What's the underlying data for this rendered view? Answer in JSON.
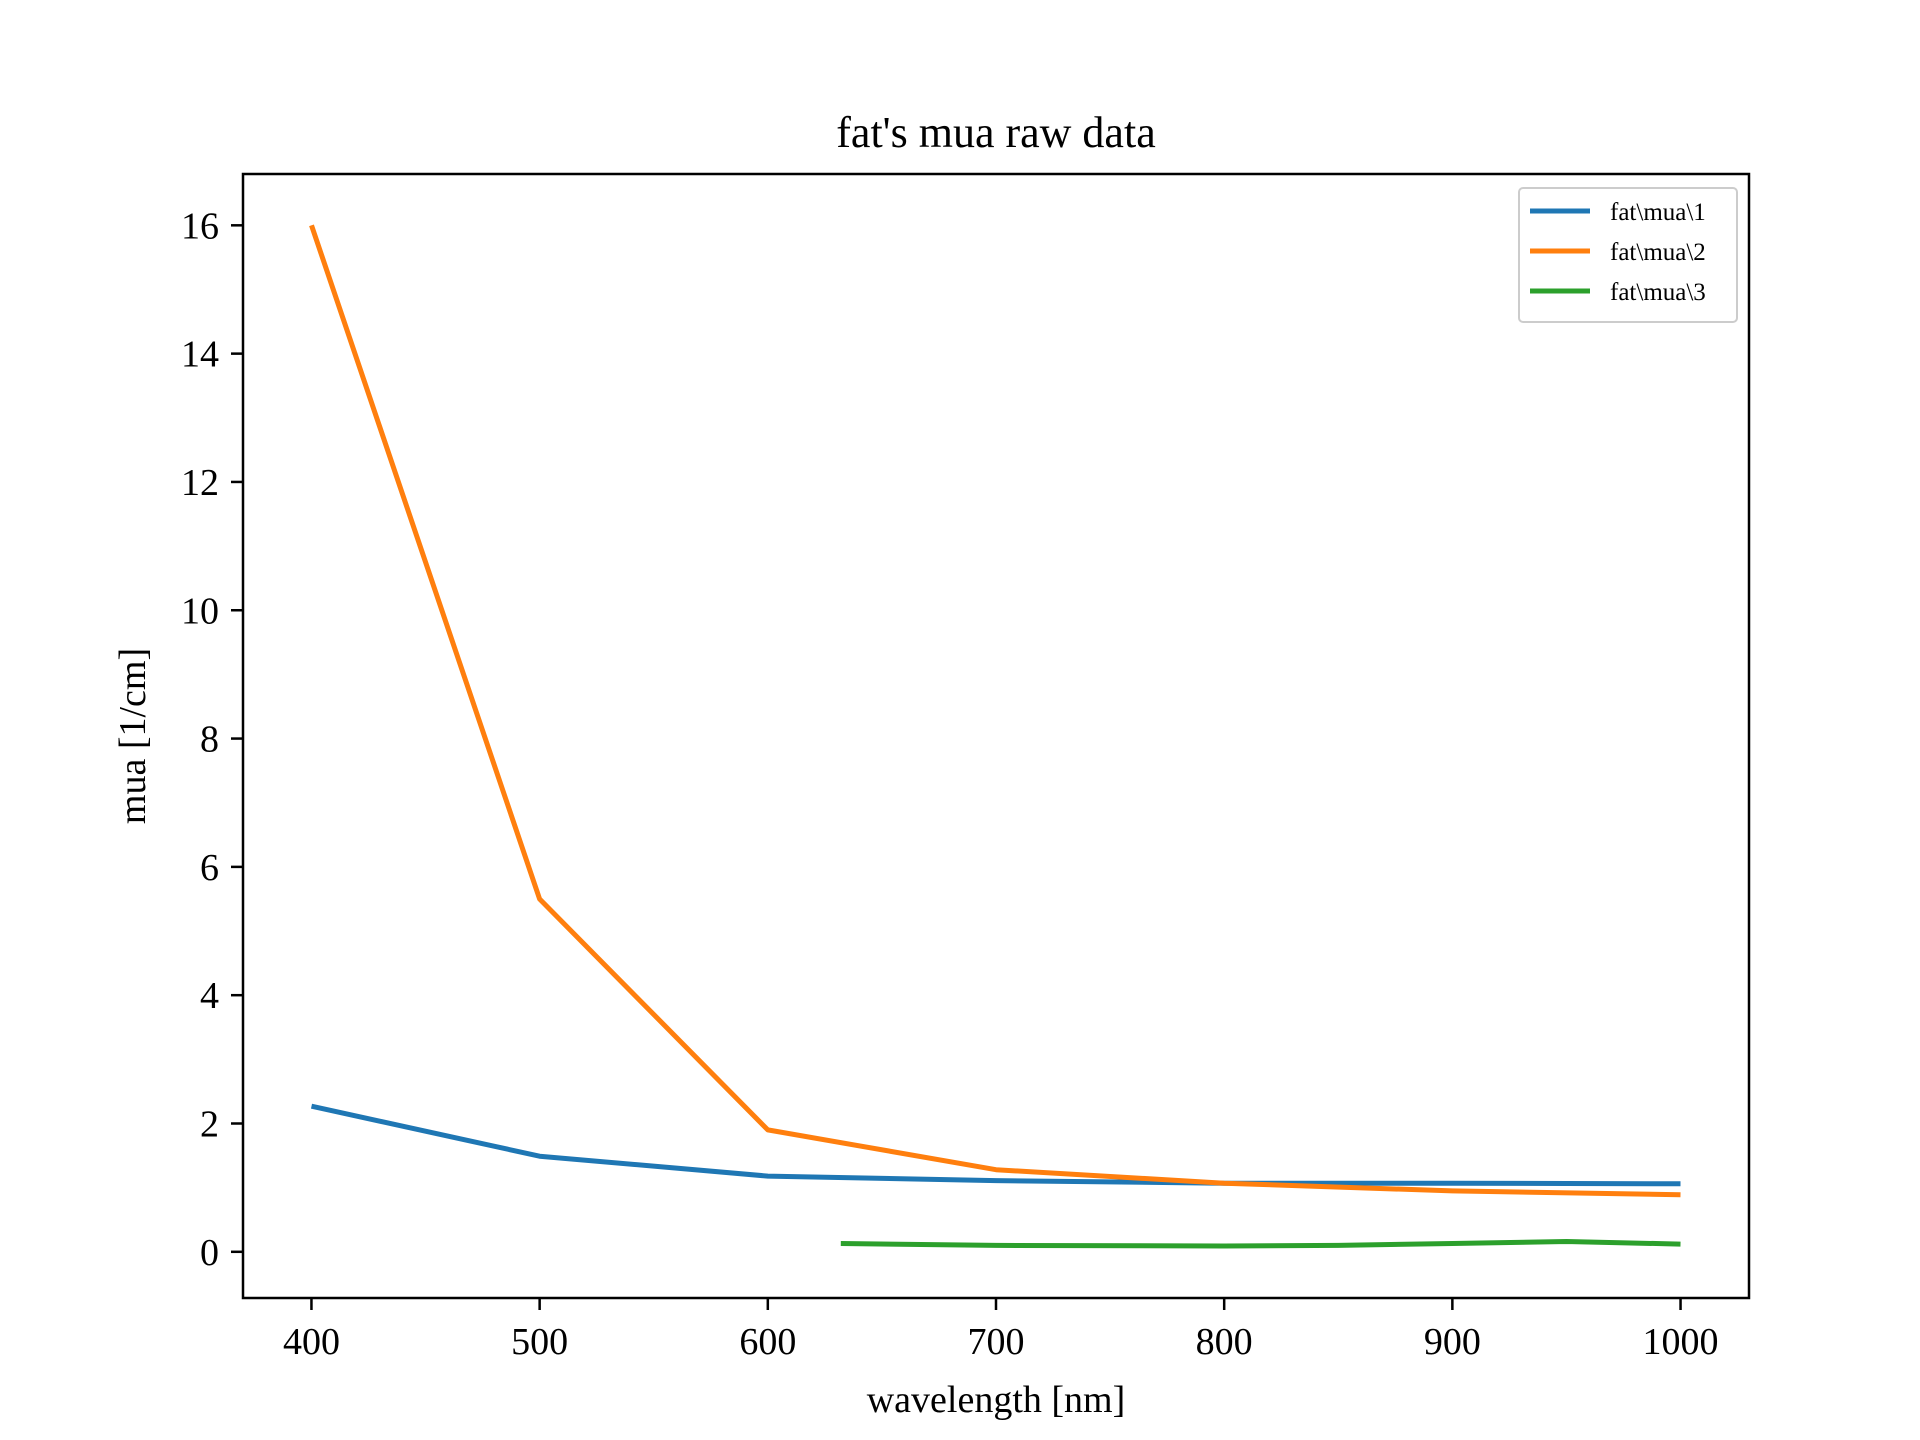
{
  "chart_data": {
    "type": "line",
    "title": "fat's mua raw data",
    "xlabel": "wavelength [nm]",
    "ylabel": "mua [1/cm]",
    "xlim": [
      370,
      1030
    ],
    "ylim": [
      -0.72,
      16.8
    ],
    "x_ticks": [
      400,
      500,
      600,
      700,
      800,
      900,
      1000
    ],
    "y_ticks": [
      0,
      2,
      4,
      6,
      8,
      10,
      12,
      14,
      16
    ],
    "grid": false,
    "legend_position": "top-right",
    "series": [
      {
        "name": "fat\\mua\\1",
        "color": "#1f77b4",
        "x": [
          400,
          500,
          600,
          700,
          800,
          900,
          1000
        ],
        "y": [
          2.27,
          1.49,
          1.18,
          1.11,
          1.07,
          1.07,
          1.06
        ]
      },
      {
        "name": "fat\\mua\\2",
        "color": "#ff7f0e",
        "x": [
          400,
          500,
          600,
          700,
          800,
          900,
          1000
        ],
        "y": [
          16.0,
          5.5,
          1.9,
          1.28,
          1.07,
          0.95,
          0.89
        ]
      },
      {
        "name": "fat\\mua\\3",
        "color": "#2ca02c",
        "x": [
          632,
          700,
          800,
          850,
          900,
          950,
          1000
        ],
        "y": [
          0.13,
          0.1,
          0.09,
          0.1,
          0.13,
          0.16,
          0.12
        ]
      }
    ]
  }
}
